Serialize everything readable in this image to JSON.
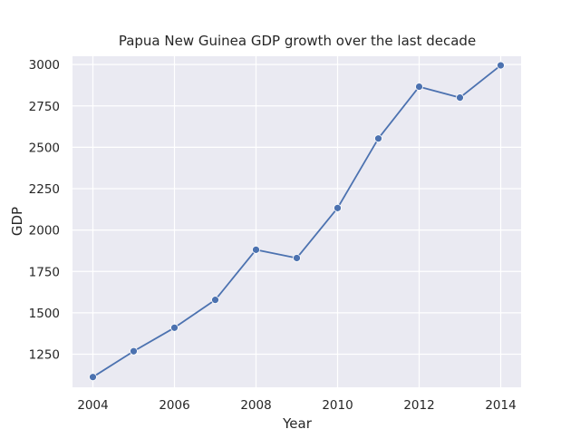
{
  "chart_data": {
    "type": "line",
    "title": "Papua New Guinea GDP growth over the last decade",
    "xlabel": "Year",
    "ylabel": "GDP",
    "x": [
      2004,
      2005,
      2006,
      2007,
      2008,
      2009,
      2010,
      2011,
      2012,
      2013,
      2014
    ],
    "series": [
      {
        "values": [
          1112,
          1268,
          1410,
          1578,
          1881,
          1831,
          2133,
          2553,
          2866,
          2800,
          2995
        ]
      }
    ],
    "xlim": [
      2003.5,
      2014.5
    ],
    "ylim": [
      1050,
      3050
    ],
    "xticks": [
      2004,
      2006,
      2008,
      2010,
      2012,
      2014
    ],
    "yticks": [
      1250,
      1500,
      1750,
      2000,
      2250,
      2500,
      2750,
      3000
    ],
    "grid": true,
    "style": {
      "background_color": "#EAEAF2",
      "grid_color": "#FFFFFF",
      "line_color": "#4C72B0",
      "marker_edge_color": "#FFFFFF"
    }
  }
}
